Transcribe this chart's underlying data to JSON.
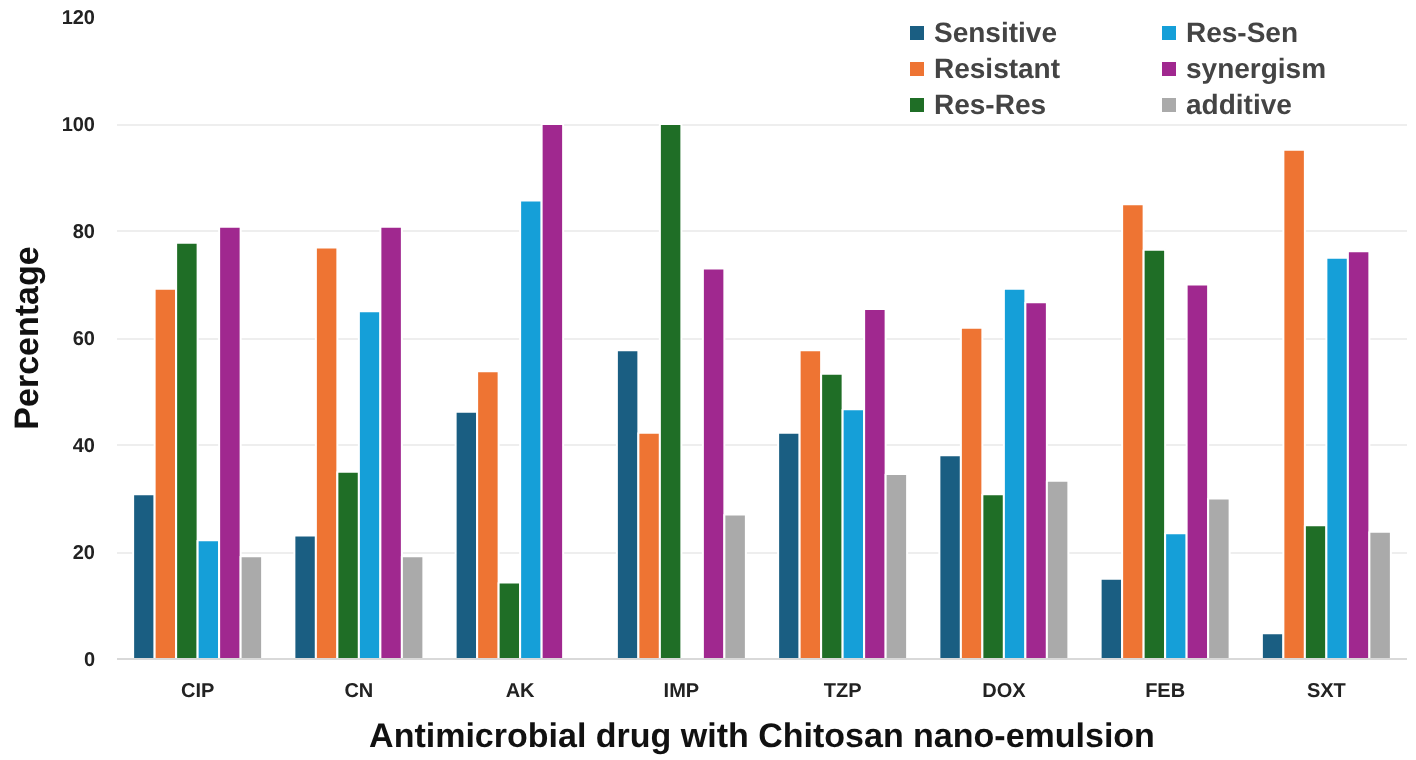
{
  "chart_data": {
    "type": "bar",
    "xlabel": "Antimicrobial drug with Chitosan nano-emulsion",
    "ylabel": "Percentage",
    "categories": [
      "CIP",
      "CN",
      "AK",
      "IMP",
      "TZP",
      "DOX",
      "FEB",
      "SXT"
    ],
    "series": [
      {
        "name": "Sensitive",
        "color": "#1a5e82",
        "values": [
          30.8,
          23.1,
          46.2,
          57.7,
          42.3,
          38.1,
          15,
          4.8
        ]
      },
      {
        "name": "Resistant",
        "color": "#ee7433",
        "values": [
          69.2,
          76.9,
          53.8,
          42.3,
          57.7,
          61.9,
          85,
          95.2
        ]
      },
      {
        "name": "Res-Res",
        "color": "#1f6e26",
        "values": [
          77.8,
          35,
          14.3,
          100,
          53.3,
          30.8,
          76.5,
          25
        ]
      },
      {
        "name": "Res-Sen",
        "color": "#159fd8",
        "values": [
          22.2,
          65,
          85.7,
          null,
          46.7,
          69.2,
          23.5,
          75
        ]
      },
      {
        "name": "synergism",
        "color": "#a0288f",
        "values": [
          80.8,
          80.8,
          100,
          73,
          65.4,
          66.7,
          70,
          76.2
        ]
      },
      {
        "name": "additive",
        "color": "#aaaaaa",
        "values": [
          19.2,
          19.2,
          null,
          27,
          34.6,
          33.3,
          30,
          23.8
        ]
      }
    ],
    "ylim": [
      0,
      120
    ],
    "yticks": [
      0,
      20,
      40,
      60,
      80,
      100,
      120
    ],
    "grid": "y",
    "legend": "top right"
  }
}
